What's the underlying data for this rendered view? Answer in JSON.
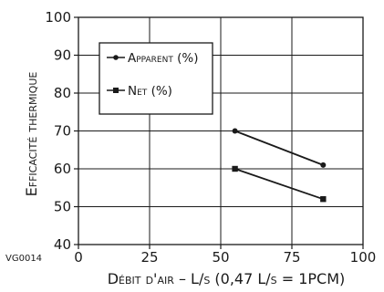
{
  "chart_data": {
    "type": "line",
    "xlabel": "Débit d'air – L/s (0,47 L/s = 1PCM)",
    "ylabel": "Efficacité thermique",
    "xlim": [
      0,
      100
    ],
    "ylim": [
      40,
      100
    ],
    "x_ticks": [
      "0",
      "25",
      "50",
      "75",
      "100"
    ],
    "y_ticks": [
      "40",
      "50",
      "60",
      "70",
      "80",
      "90",
      "100"
    ],
    "grid": true,
    "legend_position": "top-left",
    "series": [
      {
        "name": "Apparent (%)",
        "marker": "circle",
        "x": [
          55,
          86
        ],
        "y": [
          70,
          61
        ]
      },
      {
        "name": "Net (%)",
        "marker": "square",
        "x": [
          55,
          86
        ],
        "y": [
          60,
          52
        ]
      }
    ]
  },
  "figure_code": "VG0014",
  "colors": {
    "line": "#1a1a1a",
    "grid": "#1a1a1a",
    "background": "#ffffff"
  }
}
